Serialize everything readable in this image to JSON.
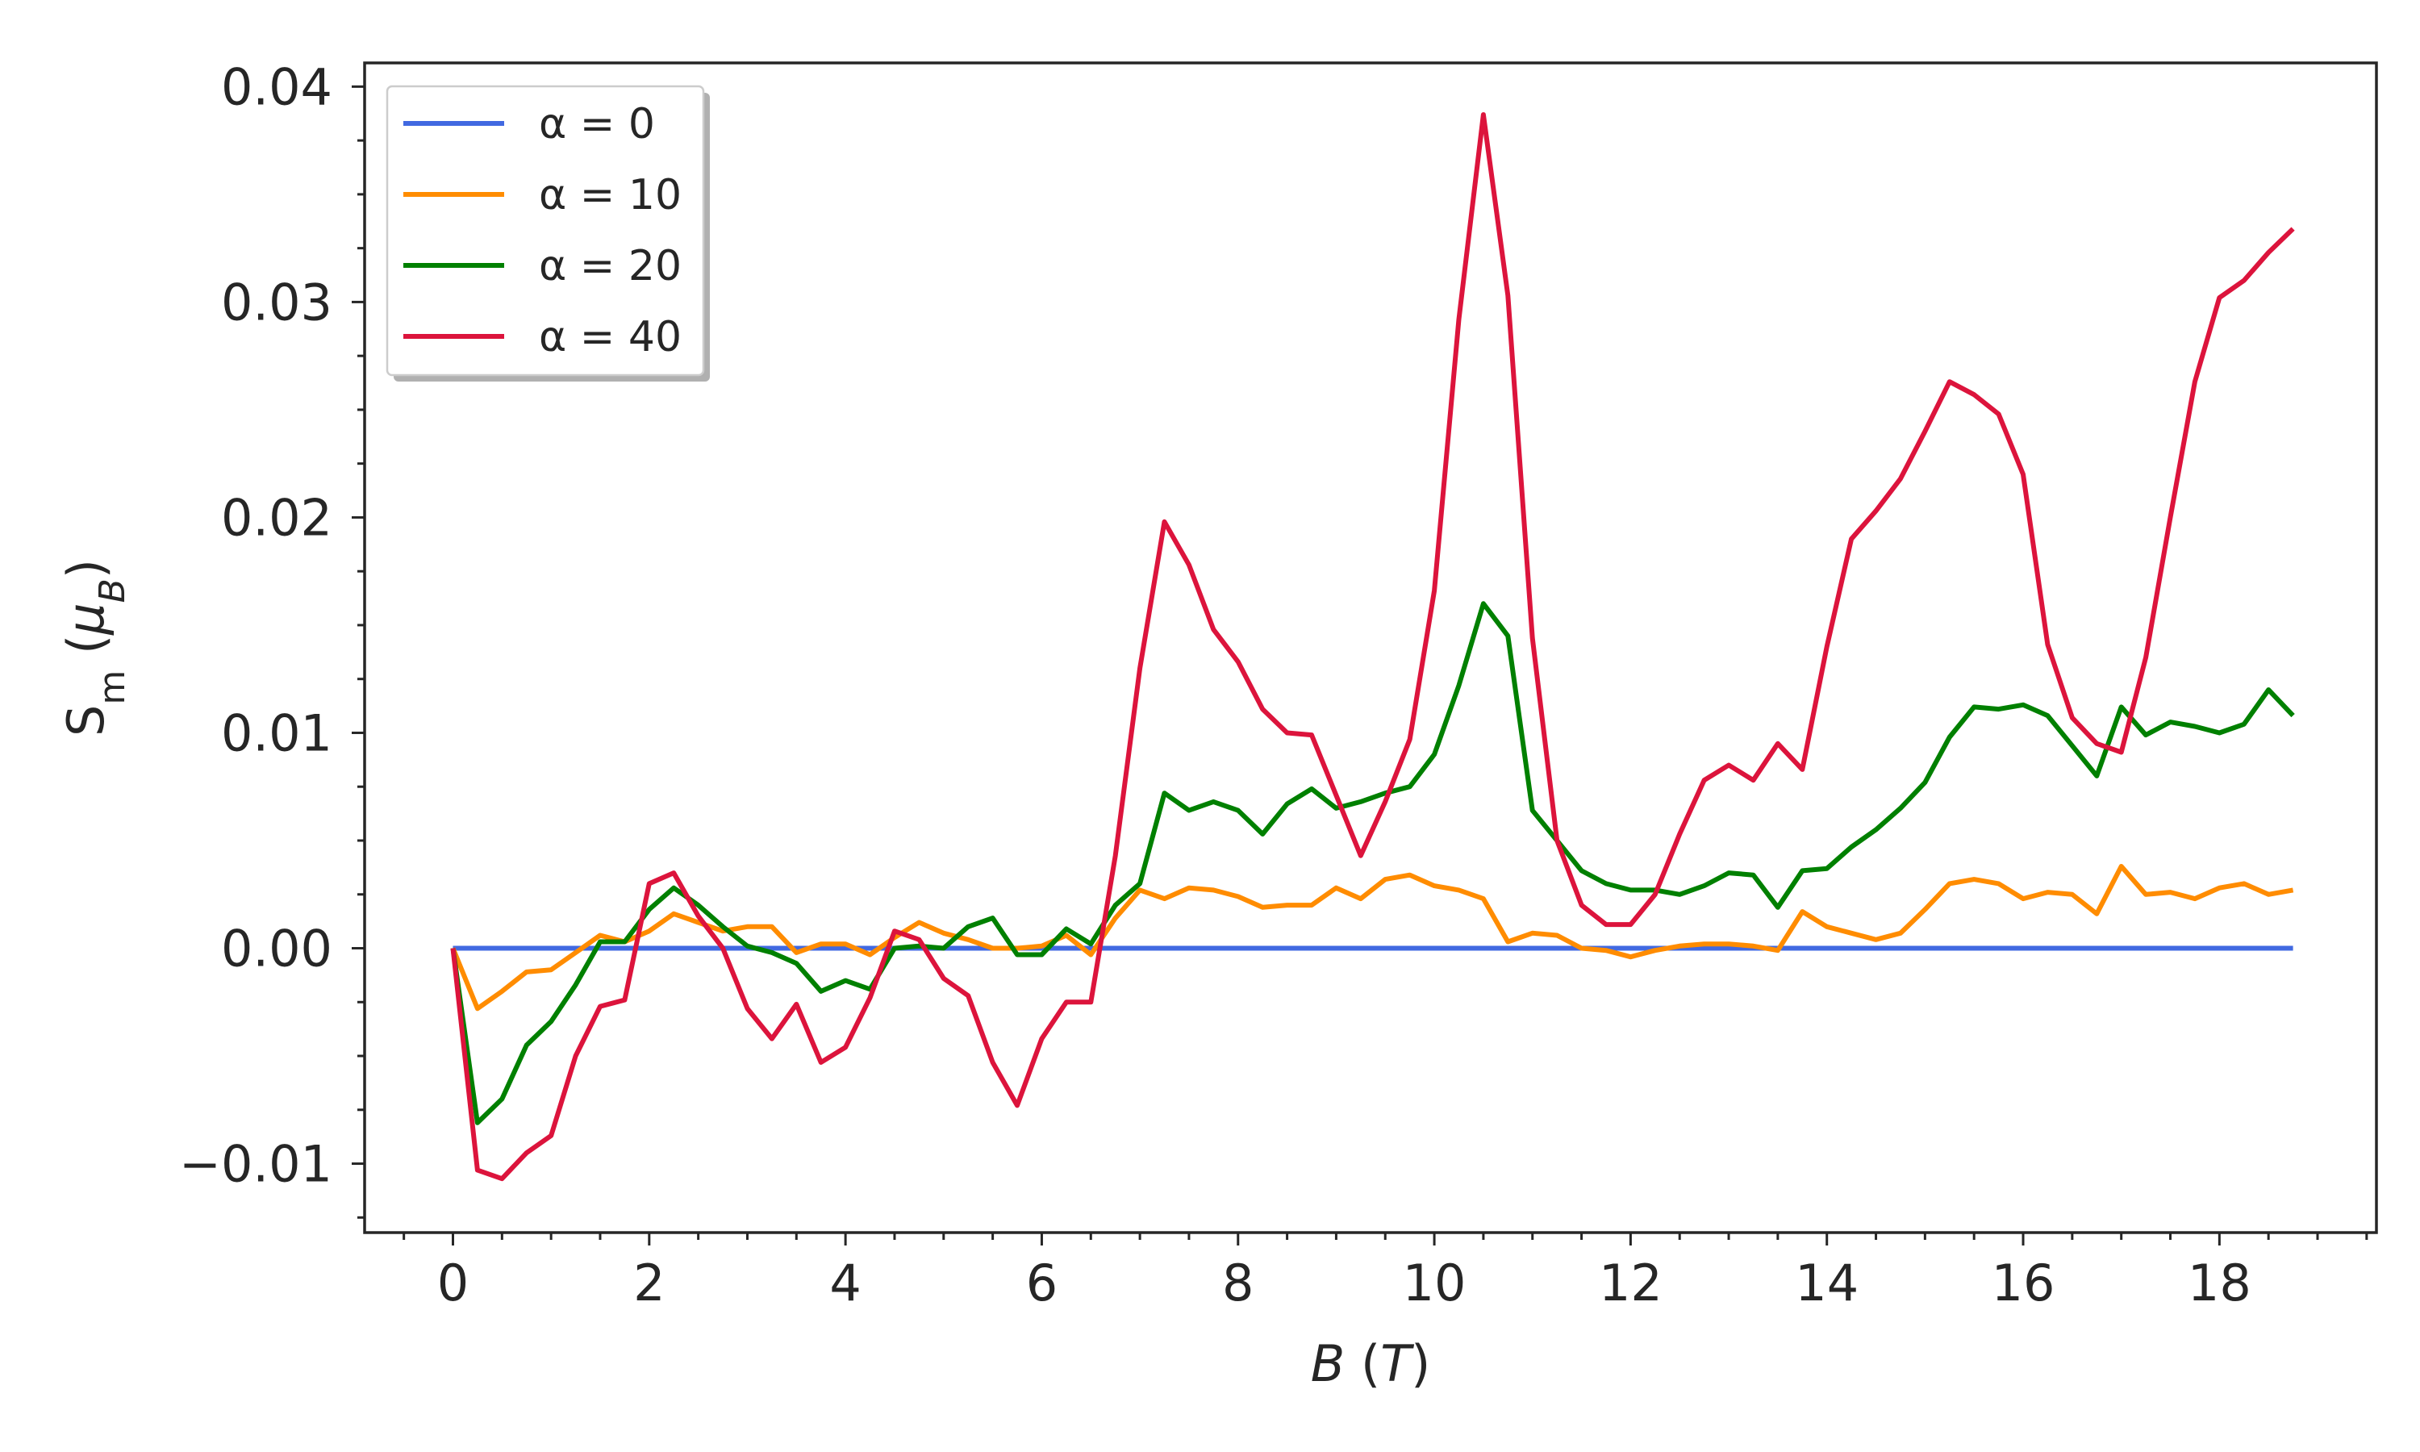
{
  "chart_data": {
    "type": "line",
    "xlabel": "B (T)",
    "ylabel": "S_m (μ_B)",
    "xlim": [
      -0.9,
      19.6
    ],
    "ylim": [
      -0.0132,
      0.0411
    ],
    "x_ticks": [
      0,
      2,
      4,
      6,
      8,
      10,
      12,
      14,
      16,
      18
    ],
    "x_tick_labels": [
      "0",
      "2",
      "4",
      "6",
      "8",
      "10",
      "12",
      "14",
      "16",
      "18"
    ],
    "y_ticks": [
      -0.01,
      0.0,
      0.01,
      0.02,
      0.03,
      0.04
    ],
    "y_tick_labels": [
      "−0.01",
      "0.00",
      "0.01",
      "0.02",
      "0.03",
      "0.04"
    ],
    "legend_position": "upper-left",
    "grid": false,
    "x": [
      0,
      0.25,
      0.5,
      0.75,
      1.0,
      1.25,
      1.5,
      1.75,
      2.0,
      2.25,
      2.5,
      2.75,
      3.0,
      3.25,
      3.5,
      3.75,
      4.0,
      4.25,
      4.5,
      4.75,
      5.0,
      5.25,
      5.5,
      5.75,
      6.0,
      6.25,
      6.5,
      6.75,
      7.0,
      7.25,
      7.5,
      7.75,
      8.0,
      8.25,
      8.5,
      8.75,
      9.0,
      9.25,
      9.5,
      9.75,
      10.0,
      10.25,
      10.5,
      10.75,
      11.0,
      11.25,
      11.5,
      11.75,
      12.0,
      12.25,
      12.5,
      12.75,
      13.0,
      13.25,
      13.5,
      13.75,
      14.0,
      14.25,
      14.5,
      14.75,
      15.0,
      15.25,
      15.5,
      15.75,
      16.0,
      16.25,
      16.5,
      16.75,
      17.0,
      17.25,
      17.5,
      17.75,
      18.0,
      18.25,
      18.5,
      18.75
    ],
    "series": [
      {
        "name": "α = 0",
        "color": "#4169E1",
        "values": [
          0,
          0,
          0,
          0,
          0,
          0,
          0,
          0,
          0,
          0,
          0,
          0,
          0,
          0,
          0,
          0,
          0,
          0,
          0,
          0,
          0,
          0,
          0,
          0,
          0,
          0,
          0,
          0,
          0,
          0,
          0,
          0,
          0,
          0,
          0,
          0,
          0,
          0,
          0,
          0,
          0,
          0,
          0,
          0,
          0,
          0,
          0,
          0,
          0,
          0,
          0,
          0,
          0,
          0,
          0,
          0,
          0,
          0,
          0,
          0,
          0,
          0,
          0,
          0,
          0,
          0,
          0,
          0,
          0,
          0,
          0,
          0,
          0,
          0,
          0,
          0
        ]
      },
      {
        "name": "α = 10",
        "color": "#FF8C00",
        "values": [
          0.0,
          -0.0028,
          -0.002,
          -0.0011,
          -0.001,
          -0.0002,
          0.0006,
          0.0003,
          0.0008,
          0.0016,
          0.0012,
          0.0008,
          0.001,
          0.001,
          -0.0002,
          0.0002,
          0.0002,
          -0.0003,
          0.0005,
          0.0012,
          0.0007,
          0.0004,
          0.0,
          0.0,
          0.0001,
          0.0006,
          -0.0003,
          0.0014,
          0.0027,
          0.0023,
          0.0028,
          0.0027,
          0.0024,
          0.0019,
          0.002,
          0.002,
          0.0028,
          0.0023,
          0.0032,
          0.0034,
          0.0029,
          0.0027,
          0.0023,
          0.0003,
          0.0007,
          0.0006,
          0.0,
          -0.0001,
          -0.0004,
          -0.0001,
          0.0001,
          0.0002,
          0.0002,
          0.0001,
          -0.0001,
          0.0017,
          0.001,
          0.0007,
          0.0004,
          0.0007,
          0.0018,
          0.003,
          0.0032,
          0.003,
          0.0023,
          0.0026,
          0.0025,
          0.0016,
          0.0038,
          0.0025,
          0.0026,
          0.0023,
          0.0028,
          0.003,
          0.0025,
          0.0027
        ]
      },
      {
        "name": "α = 20",
        "color": "#008000",
        "values": [
          0.0,
          -0.0081,
          -0.007,
          -0.0045,
          -0.0034,
          -0.0017,
          0.0003,
          0.0003,
          0.0018,
          0.0028,
          0.002,
          0.001,
          0.0001,
          -0.0002,
          -0.0007,
          -0.002,
          -0.0015,
          -0.0019,
          0.0,
          0.0001,
          0.0,
          0.001,
          0.0014,
          -0.0003,
          -0.0003,
          0.0009,
          0.0002,
          0.002,
          0.003,
          0.0072,
          0.0064,
          0.0068,
          0.0064,
          0.0053,
          0.0067,
          0.0074,
          0.0065,
          0.0068,
          0.0072,
          0.0075,
          0.009,
          0.0122,
          0.016,
          0.0145,
          0.0064,
          0.005,
          0.0036,
          0.003,
          0.0027,
          0.0027,
          0.0025,
          0.0029,
          0.0035,
          0.0034,
          0.0019,
          0.0036,
          0.0037,
          0.0047,
          0.0055,
          0.0065,
          0.0077,
          0.0098,
          0.0112,
          0.0111,
          0.0113,
          0.0108,
          0.0094,
          0.008,
          0.0112,
          0.0099,
          0.0105,
          0.0103,
          0.01,
          0.0104,
          0.012,
          0.0108
        ]
      },
      {
        "name": "α = 40",
        "color": "#DC143C",
        "values": [
          0.0,
          -0.0103,
          -0.0107,
          -0.0095,
          -0.0087,
          -0.005,
          -0.0027,
          -0.0024,
          0.003,
          0.0035,
          0.0015,
          0.0,
          -0.0028,
          -0.0042,
          -0.0026,
          -0.0053,
          -0.0046,
          -0.0023,
          0.0008,
          0.0004,
          -0.0014,
          -0.0022,
          -0.0053,
          -0.0073,
          -0.0042,
          -0.0025,
          -0.0025,
          0.0043,
          0.013,
          0.0198,
          0.0178,
          0.0148,
          0.0133,
          0.0111,
          0.01,
          0.0099,
          0.0071,
          0.0043,
          0.0068,
          0.0097,
          0.0166,
          0.0292,
          0.0387,
          0.0303,
          0.0144,
          0.005,
          0.002,
          0.0011,
          0.0011,
          0.0025,
          0.0053,
          0.0078,
          0.0085,
          0.0078,
          0.0095,
          0.0083,
          0.014,
          0.019,
          0.0203,
          0.0218,
          0.024,
          0.0263,
          0.0257,
          0.0248,
          0.022,
          0.0141,
          0.0107,
          0.0095,
          0.0091,
          0.0135,
          0.02,
          0.0263,
          0.0302,
          0.031,
          0.0323,
          0.0334
        ]
      }
    ]
  }
}
